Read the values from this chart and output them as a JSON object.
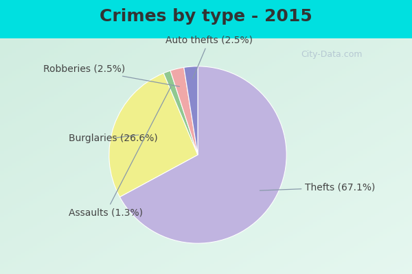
{
  "title": "Crimes by type - 2015",
  "slices": [
    {
      "label": "Thefts",
      "pct": 67.1,
      "color": "#c0b4e0"
    },
    {
      "label": "Burglaries",
      "pct": 26.6,
      "color": "#f0f08c"
    },
    {
      "label": "Assaults",
      "pct": 1.3,
      "color": "#90c890"
    },
    {
      "label": "Robberies",
      "pct": 2.5,
      "color": "#f0a8a8"
    },
    {
      "label": "Auto thefts",
      "pct": 2.5,
      "color": "#8888cc"
    }
  ],
  "bg_top_color": "#00e0e0",
  "bg_main_tl": "#d0ede0",
  "bg_main_br": "#e8f4ee",
  "title_fontsize": 18,
  "label_fontsize": 10,
  "title_color": "#333333",
  "label_color": "#444444",
  "watermark": "City-Data.com",
  "watermark_color": "#aabbcc"
}
